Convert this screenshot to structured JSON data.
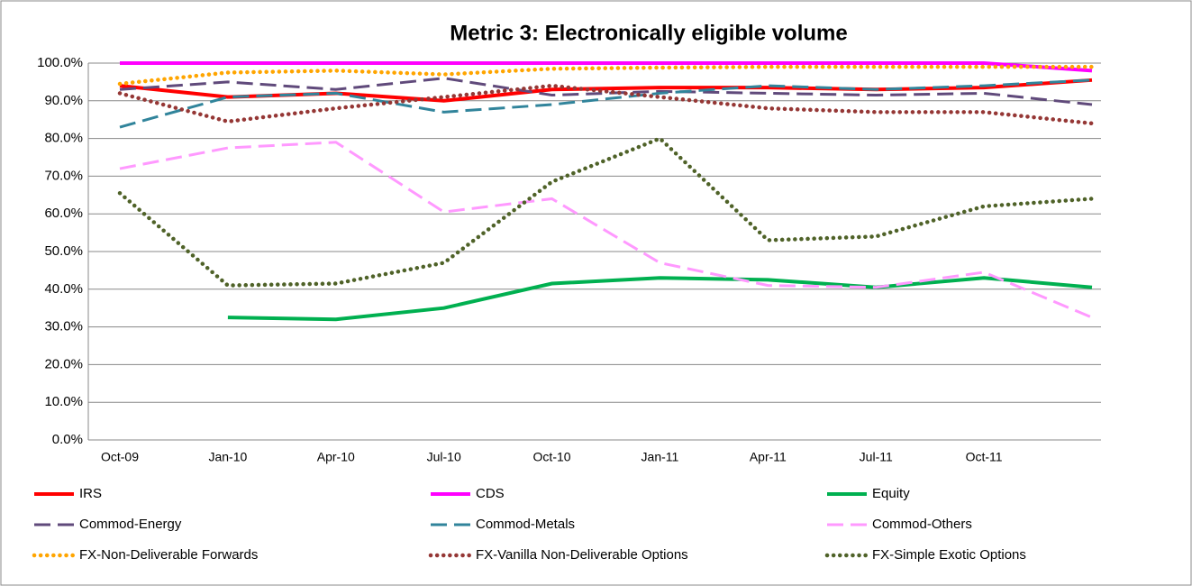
{
  "chart_data": {
    "type": "line",
    "title": "Metric 3: Electronically eligible volume",
    "categories": [
      "Oct-09",
      "Jan-10",
      "Apr-10",
      "Jul-10",
      "Oct-10",
      "Jan-11",
      "Apr-11",
      "Jul-11",
      "Oct-11",
      null
    ],
    "ylim": [
      0,
      100
    ],
    "yticks": [
      {
        "value": 0,
        "label": "0.0%"
      },
      {
        "value": 10,
        "label": "10.0%"
      },
      {
        "value": 20,
        "label": "20.0%"
      },
      {
        "value": 30,
        "label": "30.0%"
      },
      {
        "value": 40,
        "label": "40.0%"
      },
      {
        "value": 50,
        "label": "50.0%"
      },
      {
        "value": 60,
        "label": "60.0%"
      },
      {
        "value": 70,
        "label": "70.0%"
      },
      {
        "value": 80,
        "label": "80.0%"
      },
      {
        "value": 90,
        "label": "90.0%"
      },
      {
        "value": 100,
        "label": "100.0%"
      }
    ],
    "grid": true,
    "series": [
      {
        "name": "IRS",
        "color": "#ff0000",
        "style": "solid",
        "values": [
          94,
          91,
          92,
          90,
          93,
          93.5,
          93.5,
          93,
          93.5,
          95.5
        ]
      },
      {
        "name": "CDS",
        "color": "#ff00ff",
        "style": "solid",
        "values": [
          100,
          100,
          100,
          100,
          100,
          100,
          100,
          100,
          100,
          98
        ]
      },
      {
        "name": "Equity",
        "color": "#00b050",
        "style": "solid",
        "values": [
          null,
          32.5,
          32,
          35,
          41.5,
          43,
          42.5,
          40.5,
          43,
          40.5
        ]
      },
      {
        "name": "Commod-Energy",
        "color": "#604a7b",
        "style": "dashed",
        "values": [
          93,
          95,
          93,
          96,
          91.5,
          92.5,
          92,
          91.5,
          92,
          89
        ]
      },
      {
        "name": "Commod-Metals",
        "color": "#31849b",
        "style": "dashed",
        "values": [
          83,
          91,
          92,
          87,
          89,
          92,
          94,
          93,
          94,
          95.5
        ]
      },
      {
        "name": "Commod-Others",
        "color": "#ff99ff",
        "style": "dashed",
        "values": [
          72,
          77.5,
          79,
          60.5,
          64,
          47,
          41,
          40.5,
          44.5,
          32.5
        ]
      },
      {
        "name": "FX-Non-Deliverable Forwards",
        "color": "#ffa500",
        "style": "dotted",
        "values": [
          94.5,
          97.5,
          98,
          97,
          98.5,
          98.8,
          99,
          99,
          99,
          99
        ]
      },
      {
        "name": "FX-Vanilla Non-Deliverable Options",
        "color": "#953735",
        "style": "dotted",
        "values": [
          92,
          84.5,
          88,
          91,
          94,
          91,
          88,
          87,
          87,
          84
        ]
      },
      {
        "name": "FX-Simple Exotic Options",
        "color": "#4f6228",
        "style": "dotted",
        "values": [
          65.5,
          41,
          41.5,
          47,
          68.5,
          80,
          53,
          54,
          62,
          64
        ]
      }
    ]
  }
}
